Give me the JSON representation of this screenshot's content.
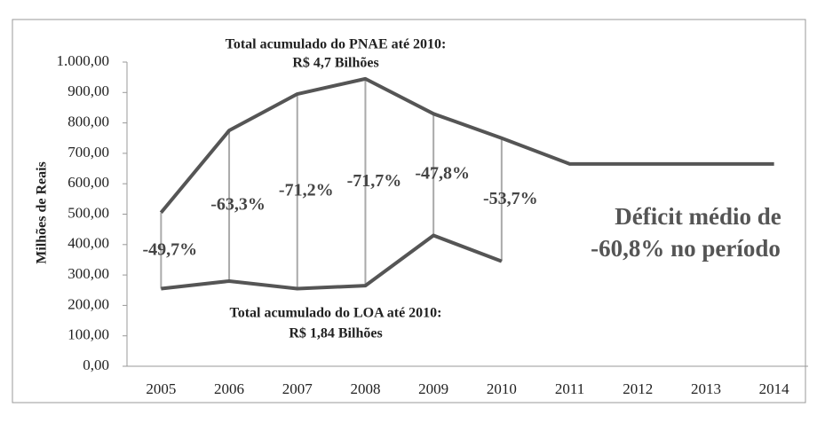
{
  "chart_data": {
    "type": "line",
    "ylabel": "Milhões de Reais",
    "categories": [
      "2005",
      "2006",
      "2007",
      "2008",
      "2009",
      "2010",
      "2011",
      "2012",
      "2013",
      "2014"
    ],
    "series": [
      {
        "color": "#555555",
        "values": [
          505,
          775,
          895,
          945,
          830,
          750,
          665,
          665,
          665,
          665
        ]
      },
      {
        "color": "#555555",
        "values": [
          255,
          280,
          255,
          265,
          430,
          345,
          null,
          null,
          null,
          null
        ]
      }
    ],
    "deficit": {
      "values": [
        -49.7,
        -63.3,
        -71.2,
        -71.7,
        -47.8,
        -53.7
      ],
      "value_labels": [
        "-49,7%",
        "-63,3%",
        "-71,2%",
        "-71,7%",
        "-47,8%",
        "-53,7%"
      ]
    },
    "ylim": [
      0,
      1000
    ],
    "yticks": [
      {
        "value": 0,
        "label": "0,00"
      },
      {
        "value": 100,
        "label": "100,00"
      },
      {
        "value": 200,
        "label": "200,00"
      },
      {
        "value": 300,
        "label": "300,00"
      },
      {
        "value": 400,
        "label": "400,00"
      },
      {
        "value": 500,
        "label": "500,00"
      },
      {
        "value": 600,
        "label": "600,00"
      },
      {
        "value": 700,
        "label": "700,00"
      },
      {
        "value": 800,
        "label": "800,00"
      },
      {
        "value": 900,
        "label": "900,00"
      },
      {
        "value": 1000,
        "label": "1.000,00"
      }
    ],
    "annotations": {
      "pnae_line1": "Total acumulado do PNAE até 2010:",
      "pnae_line2": "R$ 4,7 Bilhões",
      "loa_line1": "Total acumulado do LOA até 2010:",
      "loa_line2": "R$ 1,84 Bilhões",
      "deficit_line1": "Déficit médio de",
      "deficit_line2": "-60,8% no período"
    }
  }
}
